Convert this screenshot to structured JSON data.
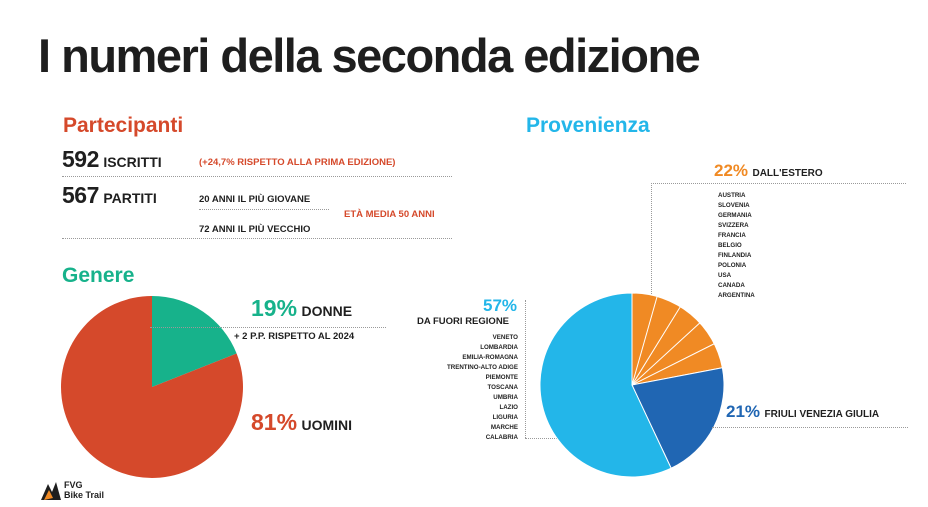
{
  "header": {
    "title": "I numeri della seconda edizione"
  },
  "colors": {
    "orange_red": "#d5492b",
    "green": "#17b28b",
    "cyan": "#23b6e9",
    "dark_blue": "#2066b3",
    "orange": "#f08a24",
    "dark": "#1e1e1e"
  },
  "partecipanti": {
    "title": "Partecipanti",
    "iscritti_value": "592",
    "iscritti_label": "ISCRITTI",
    "iscritti_note": "(+24,7% RISPETTO ALLA PRIMA EDIZIONE)",
    "partiti_value": "567",
    "partiti_label": "PARTITI",
    "youngest": "20 ANNI IL PIÙ GIOVANE",
    "average_age": "ETÀ MEDIA 50 ANNI",
    "oldest": "72 ANNI IL PIÙ VECCHIO"
  },
  "genere": {
    "title": "Genere",
    "donne_value": "19%",
    "donne_label": "DONNE",
    "donne_note": "+ 2 P.P. RISPETTO AL 2024",
    "uomini_value": "81%",
    "uomini_label": "UOMINI"
  },
  "provenienza": {
    "title": "Provenienza",
    "estero_value": "22%",
    "estero_label": "DALL'ESTERO",
    "estero_countries": [
      "AUSTRIA",
      "SLOVENIA",
      "GERMANIA",
      "SVIZZERA",
      "FRANCIA",
      "BELGIO",
      "FINLANDIA",
      "POLONIA",
      "USA",
      "CANADA",
      "ARGENTINA"
    ],
    "fuori_value": "57%",
    "fuori_label": "DA FUORI REGIONE",
    "fuori_regions": [
      "VENETO",
      "LOMBARDIA",
      "EMILIA-ROMAGNA",
      "TRENTINO-ALTO ADIGE",
      "PIEMONTE",
      "TOSCANA",
      "UMBRIA",
      "LAZIO",
      "LIGURIA",
      "MARCHE",
      "CALABRIA"
    ],
    "fvg_value": "21%",
    "fvg_label": "FRIULI VENEZIA GIULIA"
  },
  "logo": {
    "line1": "FVG",
    "line2": "Bike Trail"
  },
  "chart_data": [
    {
      "type": "pie",
      "title": "Genere",
      "categories": [
        "DONNE",
        "UOMINI"
      ],
      "values": [
        19,
        81
      ],
      "colors": [
        "#17b28b",
        "#d5492b"
      ]
    },
    {
      "type": "pie",
      "title": "Provenienza",
      "categories": [
        "DALL'ESTERO",
        "FRIULI VENEZIA GIULIA",
        "DA FUORI REGIONE"
      ],
      "values": [
        22,
        21,
        57
      ],
      "colors": [
        "#f08a24",
        "#2066b3",
        "#23b6e9"
      ]
    }
  ]
}
